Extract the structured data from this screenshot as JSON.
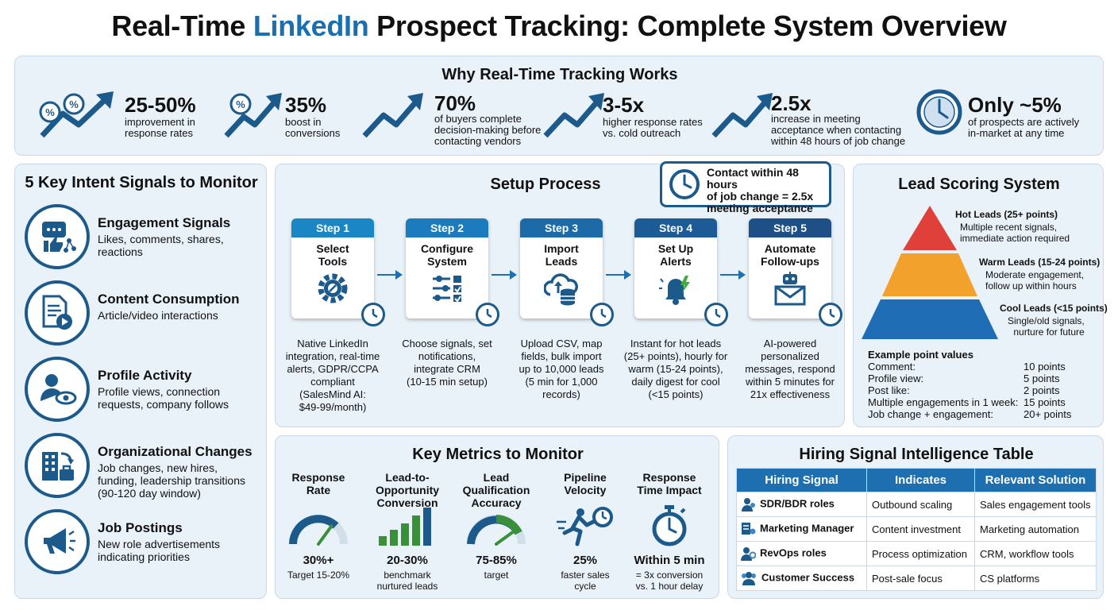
{
  "title": {
    "part1": "Real-Time ",
    "accent": "LinkedIn",
    "part2": " Prospect Tracking: Complete System Overview"
  },
  "why": {
    "title": "Why Real-Time Tracking Works",
    "stats": [
      {
        "value": "25-50%",
        "desc": "improvement in\nresponse rates"
      },
      {
        "value": "35%",
        "desc": "boost in\nconversions"
      },
      {
        "value": "70%",
        "desc": "of buyers complete\ndecision-making before\ncontacting vendors"
      },
      {
        "value": "3-5x",
        "desc": "higher response rates\nvs. cold outreach"
      },
      {
        "value": "2.5x",
        "desc": "increase in meeting\nacceptance when contacting\nwithin 48 hours of job change"
      },
      {
        "value": "Only ~5%",
        "desc": "of prospects are actively\nin-market at any time"
      }
    ]
  },
  "signals": {
    "title": "5 Key Intent Signals to Monitor",
    "items": [
      {
        "title": "Engagement Signals",
        "desc": "Likes, comments, shares,\nreactions",
        "icon": "engagement-icon"
      },
      {
        "title": "Content Consumption",
        "desc": "Article/video interactions",
        "icon": "document-video-icon"
      },
      {
        "title": "Profile Activity",
        "desc": "Profile views, connection\nrequests, company follows",
        "icon": "profile-eye-icon"
      },
      {
        "title": "Organizational Changes",
        "desc": "Job changes, new hires,\nfunding, leadership transitions\n(90-120 day window)",
        "icon": "building-briefcase-icon"
      },
      {
        "title": "Job Postings",
        "desc": "New role advertisements\nindicating priorities",
        "icon": "megaphone-icon"
      }
    ]
  },
  "setup": {
    "title": "Setup Process",
    "callout": "Contact within 48 hours\nof job change = 2.5x\nmeeting acceptance",
    "steps": [
      {
        "label": "Step 1",
        "name": "Select\nTools",
        "desc": "Native LinkedIn\nintegration, real-time\nalerts, GDPR/CCPA\ncompliant\n(SalesMind AI:\n$49-99/month)",
        "color": "#1b86c4",
        "icon": "gear-link-icon"
      },
      {
        "label": "Step 2",
        "name": "Configure\nSystem",
        "desc": "Choose signals, set\nnotifications,\nintegrate CRM\n(10-15 min setup)",
        "color": "#1b7bbd",
        "icon": "sliders-checklist-icon"
      },
      {
        "label": "Step 3",
        "name": "Import\nLeads",
        "desc": "Upload CSV, map\nfields, bulk import\nup to 10,000 leads\n(5 min for 1,000\nrecords)",
        "color": "#1c6aa8",
        "icon": "cloud-database-icon"
      },
      {
        "label": "Step 4",
        "name": "Set Up\nAlerts",
        "desc": "Instant for hot leads\n(25+ points), hourly for\nwarm (15-24 points),\ndaily digest for cool\n(<15 points)",
        "color": "#1d5b96",
        "icon": "bell-alert-icon"
      },
      {
        "label": "Step 5",
        "name": "Automate\nFollow-ups",
        "desc": "AI-powered\npersonalized\nmessages, respond\nwithin 5 minutes for\n21x effectiveness",
        "color": "#1e4f86",
        "icon": "robot-envelope-icon"
      }
    ]
  },
  "scoring": {
    "title": "Lead Scoring System",
    "levels": [
      {
        "title": "Hot Leads (25+ points)",
        "desc": "Multiple recent signals,\nimmediate action required",
        "color": "#e0403a"
      },
      {
        "title": "Warm Leads (15-24 points)",
        "desc": "Moderate engagement,\nfollow up within hours",
        "color": "#f2a22c"
      },
      {
        "title": "Cool Leads (<15 points)",
        "desc": "Single/old signals,\nnurture for future",
        "color": "#1f6db5"
      }
    ],
    "points_title": "Example point values",
    "points": [
      {
        "label": "Comment:",
        "value": "10 points"
      },
      {
        "label": "Profile view:",
        "value": "5 points"
      },
      {
        "label": "Post like:",
        "value": "2 points"
      },
      {
        "label": "Multiple engagements in 1 week:",
        "value": "15 points"
      },
      {
        "label": "Job change + engagement:",
        "value": "20+ points"
      }
    ]
  },
  "metrics": {
    "title": "Key Metrics to Monitor",
    "items": [
      {
        "title": "Response\nRate",
        "value": "30%+",
        "desc": "Target 15-20%",
        "icon": "gauge-icon",
        "level": 0.7
      },
      {
        "title": "Lead-to-Opportunity\nConversion",
        "value": "20-30%",
        "desc": "benchmark\nnurtured leads",
        "icon": "bar-chart-icon"
      },
      {
        "title": "Lead Qualification\nAccuracy",
        "value": "75-85%",
        "desc": "target",
        "icon": "gauge-icon",
        "level": 0.8
      },
      {
        "title": "Pipeline\nVelocity",
        "value": "25%",
        "desc": "faster sales\ncycle",
        "icon": "runner-clock-icon"
      },
      {
        "title": "Response\nTime Impact",
        "value": "Within 5 min",
        "desc": "= 3x conversion\nvs. 1 hour delay",
        "icon": "stopwatch-icon"
      }
    ]
  },
  "hiring": {
    "title": "Hiring Signal Intelligence Table",
    "headers": [
      "Hiring Signal",
      "Indicates",
      "Relevant Solution"
    ],
    "rows": [
      [
        "SDR/BDR roles",
        "Outbound scaling",
        "Sales engagement tools"
      ],
      [
        "Marketing Manager",
        "Content investment",
        "Marketing automation"
      ],
      [
        "RevOps roles",
        "Process optimization",
        "CRM, workflow tools"
      ],
      [
        "Customer Success",
        "Post-sale focus",
        "CS platforms"
      ]
    ]
  }
}
